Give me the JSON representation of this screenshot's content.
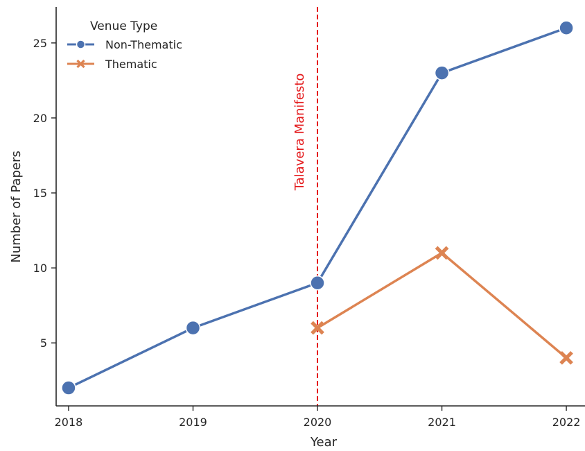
{
  "chart_data": {
    "type": "line",
    "xlabel": "Year",
    "ylabel": "Number of Papers",
    "x": [
      2018,
      2019,
      2020,
      2021,
      2022
    ],
    "xlim": [
      2017.9,
      2022.15
    ],
    "ylim": [
      0.8,
      27.4
    ],
    "yticks": [
      5,
      10,
      15,
      20,
      25
    ],
    "grid": false,
    "legend": {
      "title": "Venue Type",
      "position": "top-left"
    },
    "series": [
      {
        "name": "Non-Thematic",
        "color": "#4c72b0",
        "marker": "circle",
        "x": [
          2018,
          2019,
          2020,
          2021,
          2022
        ],
        "values": [
          2,
          6,
          9,
          23,
          26
        ]
      },
      {
        "name": "Thematic",
        "color": "#dd8452",
        "marker": "x",
        "x": [
          2020,
          2021,
          2022
        ],
        "values": [
          6,
          11,
          4
        ]
      }
    ],
    "annotations": [
      {
        "type": "vline",
        "x": 2020,
        "color": "#e41a1c",
        "style": "dashed",
        "text": "Talavera Manifesto"
      }
    ]
  }
}
